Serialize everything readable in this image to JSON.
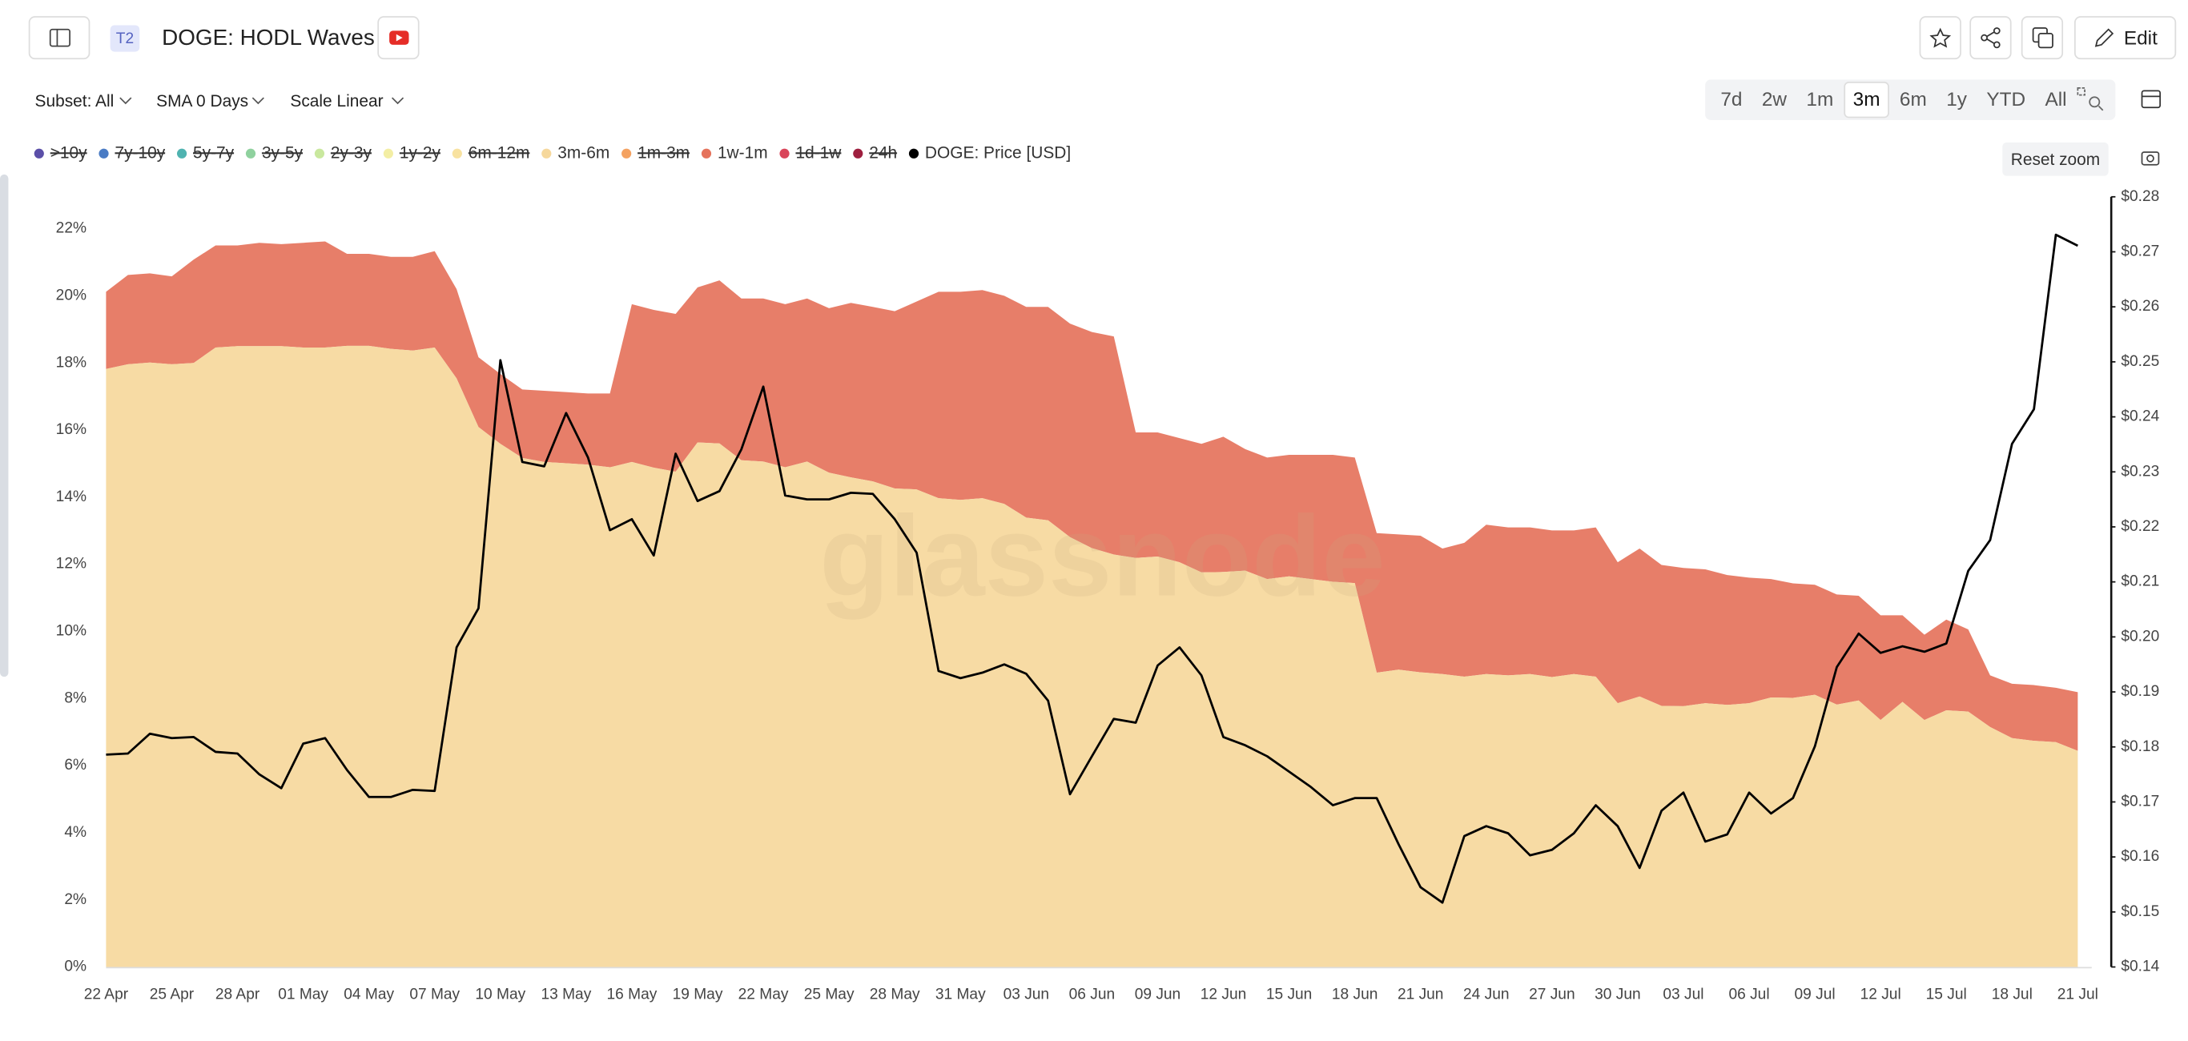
{
  "toolbar": {
    "badge": "T2",
    "title": "DOGE: HODL Waves",
    "edit": "Edit",
    "subset": "Subset: All",
    "sma": "SMA 0 Days",
    "scale": "Scale Linear",
    "ranges": [
      "7d",
      "2w",
      "1m",
      "3m",
      "6m",
      "1y",
      "YTD",
      "All"
    ],
    "active_range": "3m",
    "reset_zoom": "Reset zoom"
  },
  "chart_data": {
    "type": "area",
    "stacked": true,
    "watermark": "glassnode",
    "categories": [
      "22 Apr",
      null,
      null,
      "25 Apr",
      null,
      null,
      "28 Apr",
      null,
      null,
      "01 May",
      null,
      null,
      "04 May",
      null,
      null,
      "07 May",
      null,
      null,
      "10 May",
      null,
      null,
      "13 May",
      null,
      null,
      "16 May",
      null,
      null,
      "19 May",
      null,
      null,
      "22 May",
      null,
      null,
      "25 May",
      null,
      null,
      "28 May",
      null,
      null,
      "31 May",
      null,
      null,
      "03 Jun",
      null,
      null,
      "06 Jun",
      null,
      null,
      "09 Jun",
      null,
      null,
      "12 Jun",
      null,
      null,
      "15 Jun",
      null,
      null,
      "18 Jun",
      null,
      null,
      "21 Jun",
      null,
      null,
      "24 Jun",
      null,
      null,
      "27 Jun",
      null,
      null,
      "30 Jun",
      null,
      null,
      "03 Jul",
      null,
      null,
      "06 Jul",
      null,
      null,
      "09 Jul",
      null,
      null,
      "12 Jul",
      null,
      null,
      "15 Jul",
      null,
      null,
      "18 Jul",
      null,
      null,
      "21 Jul"
    ],
    "series": [
      {
        "name": ">10y",
        "color": "#5b4fa8",
        "visible": false
      },
      {
        "name": "7y-10y",
        "color": "#4a7bc4",
        "visible": false
      },
      {
        "name": "5y-7y",
        "color": "#4fb3b0",
        "visible": false
      },
      {
        "name": "3y-5y",
        "color": "#8fd19e",
        "visible": false
      },
      {
        "name": "2y-3y",
        "color": "#c9e89e",
        "visible": false
      },
      {
        "name": "1y-2y",
        "color": "#f3eea4",
        "visible": false
      },
      {
        "name": "6m-12m",
        "color": "#f8e2a0",
        "visible": false
      },
      {
        "name": "3m-6m",
        "color": "#f6d89c",
        "visible": true,
        "values": [
          17.82,
          17.96,
          18.01,
          17.96,
          18.0,
          18.46,
          18.5,
          18.5,
          18.5,
          18.46,
          18.46,
          18.51,
          18.51,
          18.42,
          18.37,
          18.46,
          17.54,
          16.09,
          15.59,
          15.17,
          15.05,
          15.01,
          14.97,
          14.89,
          15.05,
          14.88,
          14.76,
          15.63,
          15.6,
          15.1,
          15.06,
          14.89,
          15.06,
          14.73,
          14.59,
          14.47,
          14.26,
          14.23,
          13.97,
          13.92,
          13.97,
          13.8,
          13.39,
          13.31,
          12.81,
          12.48,
          12.29,
          12.19,
          12.23,
          12.06,
          11.76,
          11.77,
          11.81,
          11.56,
          11.64,
          11.56,
          11.48,
          11.44,
          8.77,
          8.86,
          8.78,
          8.73,
          8.65,
          8.73,
          8.69,
          8.73,
          8.64,
          8.73,
          8.65,
          7.86,
          8.06,
          7.78,
          7.77,
          7.86,
          7.81,
          7.86,
          8.03,
          8.02,
          8.11,
          7.82,
          7.94,
          7.36,
          7.9,
          7.36,
          7.65,
          7.61,
          7.15,
          6.82,
          6.74,
          6.7,
          6.44
        ]
      },
      {
        "name": "1m-3m",
        "color": "#f4a261",
        "visible": false
      },
      {
        "name": "1w-1m",
        "color": "#e5735c",
        "visible": true,
        "values": [
          2.3,
          2.66,
          2.66,
          2.62,
          3.08,
          3.04,
          3.0,
          3.08,
          3.04,
          3.12,
          3.16,
          2.74,
          2.74,
          2.74,
          2.79,
          2.87,
          2.66,
          2.08,
          2.08,
          2.04,
          2.12,
          2.12,
          2.12,
          2.2,
          4.7,
          4.7,
          4.7,
          4.62,
          4.86,
          4.82,
          4.86,
          4.86,
          4.86,
          4.9,
          5.2,
          5.2,
          5.28,
          5.6,
          6.15,
          6.2,
          6.2,
          6.2,
          6.28,
          6.36,
          6.36,
          6.44,
          6.5,
          3.74,
          3.7,
          3.7,
          3.83,
          4.03,
          3.62,
          3.62,
          3.62,
          3.7,
          3.78,
          3.74,
          4.16,
          4.03,
          4.07,
          3.74,
          3.99,
          4.45,
          4.41,
          4.37,
          4.37,
          4.28,
          4.45,
          4.2,
          4.41,
          4.2,
          4.12,
          3.99,
          3.87,
          3.74,
          3.53,
          3.41,
          3.28,
          3.28,
          3.12,
          3.12,
          2.58,
          2.54,
          2.7,
          2.45,
          1.54,
          1.62,
          1.66,
          1.62,
          1.75
        ]
      },
      {
        "name": "1d-1w",
        "color": "#d9455a",
        "visible": false
      },
      {
        "name": "24h",
        "color": "#9e1f3f",
        "visible": false
      },
      {
        "name": "DOGE: Price [USD]",
        "color": "#000000",
        "visible": true,
        "type": "line",
        "axis": "y2",
        "values": [
          0.1786,
          0.1788,
          0.1824,
          0.1816,
          0.1818,
          0.1791,
          0.1788,
          0.175,
          0.1725,
          0.1806,
          0.1816,
          0.1758,
          0.1709,
          0.1709,
          0.1722,
          0.172,
          0.1981,
          0.2052,
          0.2503,
          0.2318,
          0.231,
          0.2407,
          0.2326,
          0.2194,
          0.2214,
          0.2148,
          0.2333,
          0.2247,
          0.2265,
          0.2341,
          0.2455,
          0.2257,
          0.225,
          0.225,
          0.2262,
          0.226,
          0.2214,
          0.2153,
          0.1938,
          0.1925,
          0.1935,
          0.195,
          0.1933,
          0.1884,
          0.1714,
          0.1783,
          0.1851,
          0.1844,
          0.1948,
          0.1981,
          0.193,
          0.1818,
          0.1803,
          0.1783,
          0.1755,
          0.1727,
          0.1694,
          0.1707,
          0.1707,
          0.1623,
          0.1545,
          0.1517,
          0.1638,
          0.1656,
          0.1643,
          0.1603,
          0.1613,
          0.1643,
          0.1694,
          0.1656,
          0.158,
          0.1684,
          0.1717,
          0.1628,
          0.1641,
          0.1717,
          0.1679,
          0.1707,
          0.1801,
          0.1945,
          0.2006,
          0.1971,
          0.1983,
          0.1973,
          0.1988,
          0.212,
          0.2176,
          0.2351,
          0.2414,
          0.2731,
          0.2711
        ]
      }
    ],
    "ylim": [
      0,
      22.95
    ],
    "yticks": [
      {
        "value": 0,
        "label": "0%"
      },
      {
        "value": 2,
        "label": "2%"
      },
      {
        "value": 4,
        "label": "4%"
      },
      {
        "value": 6,
        "label": "6%"
      },
      {
        "value": 8,
        "label": "8%"
      },
      {
        "value": 10,
        "label": "10%"
      },
      {
        "value": 12,
        "label": "12%"
      },
      {
        "value": 14,
        "label": "14%"
      },
      {
        "value": 16,
        "label": "16%"
      },
      {
        "value": 18,
        "label": "18%"
      },
      {
        "value": 20,
        "label": "20%"
      },
      {
        "value": 22,
        "label": "22%"
      }
    ],
    "y2lim": [
      0.14,
      0.28
    ],
    "y2ticks": [
      {
        "value": 0.14,
        "label": "$0.14"
      },
      {
        "value": 0.15,
        "label": "$0.15"
      },
      {
        "value": 0.16,
        "label": "$0.16"
      },
      {
        "value": 0.17,
        "label": "$0.17"
      },
      {
        "value": 0.18,
        "label": "$0.18"
      },
      {
        "value": 0.19,
        "label": "$0.19"
      },
      {
        "value": 0.2,
        "label": "$0.20"
      },
      {
        "value": 0.21,
        "label": "$0.21"
      },
      {
        "value": 0.22,
        "label": "$0.22"
      },
      {
        "value": 0.23,
        "label": "$0.23"
      },
      {
        "value": 0.24,
        "label": "$0.24"
      },
      {
        "value": 0.25,
        "label": "$0.25"
      },
      {
        "value": 0.26,
        "label": "$0.26"
      },
      {
        "value": 0.27,
        "label": "$0.27"
      },
      {
        "value": 0.28,
        "label": "$0.28"
      }
    ],
    "grid": false
  }
}
